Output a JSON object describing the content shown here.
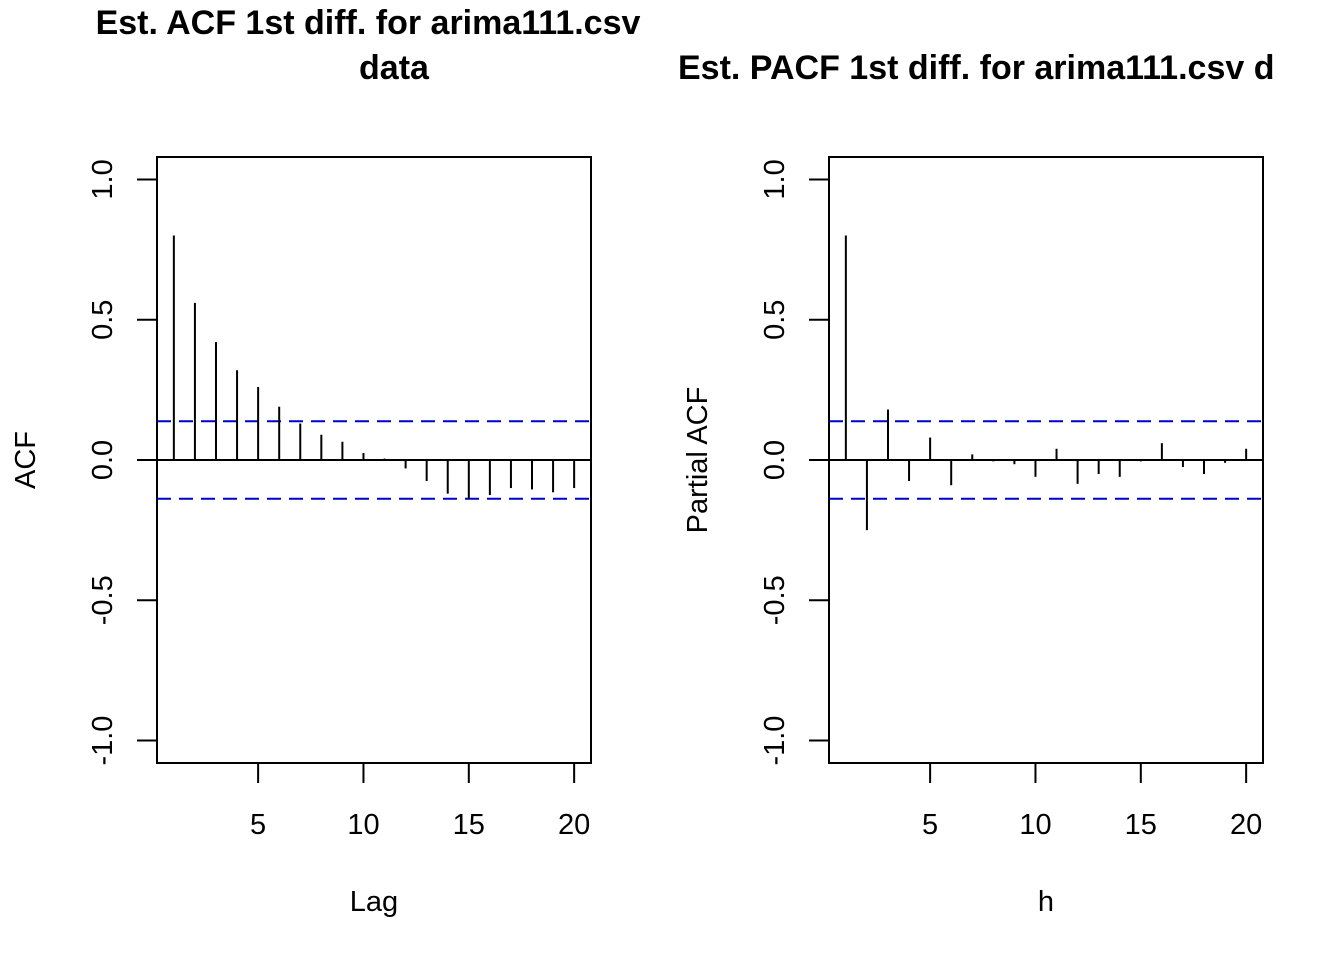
{
  "chart_data": [
    {
      "type": "bar",
      "title_line1": "Est. ACF 1st diff. for arima111.csv",
      "title_line2": "data",
      "xlabel": "Lag",
      "ylabel": "ACF",
      "xlim": [
        0.2,
        20.8
      ],
      "ylim": [
        -1.08,
        1.08
      ],
      "x_ticks": [
        5,
        10,
        15,
        20
      ],
      "x_tick_labels": [
        "5",
        "10",
        "15",
        "20"
      ],
      "y_ticks": [
        -1.0,
        -0.5,
        0.0,
        0.5,
        1.0
      ],
      "y_tick_labels": [
        "-1.0",
        "-0.5",
        "0.0",
        "0.5",
        "1.0"
      ],
      "confidence_bound": 0.138,
      "confidence_color": "#0000cc",
      "lags": [
        1,
        2,
        3,
        4,
        5,
        6,
        7,
        8,
        9,
        10,
        11,
        12,
        13,
        14,
        15,
        16,
        17,
        18,
        19,
        20
      ],
      "values": [
        0.8,
        0.56,
        0.42,
        0.32,
        0.26,
        0.19,
        0.13,
        0.09,
        0.065,
        0.025,
        0.005,
        -0.03,
        -0.075,
        -0.12,
        -0.14,
        -0.125,
        -0.1,
        -0.105,
        -0.115,
        -0.1
      ]
    },
    {
      "type": "bar",
      "title_line1": "Est. PACF 1st diff. for arima111.csv d",
      "title_line2": "",
      "xlabel": "h",
      "ylabel": "Partial ACF",
      "xlim": [
        0.2,
        20.8
      ],
      "ylim": [
        -1.08,
        1.08
      ],
      "x_ticks": [
        5,
        10,
        15,
        20
      ],
      "x_tick_labels": [
        "5",
        "10",
        "15",
        "20"
      ],
      "y_ticks": [
        -1.0,
        -0.5,
        0.0,
        0.5,
        1.0
      ],
      "y_tick_labels": [
        "-1.0",
        "-0.5",
        "0.0",
        "0.5",
        "1.0"
      ],
      "confidence_bound": 0.138,
      "confidence_color": "#0000cc",
      "lags": [
        1,
        2,
        3,
        4,
        5,
        6,
        7,
        8,
        9,
        10,
        11,
        12,
        13,
        14,
        15,
        16,
        17,
        18,
        19,
        20
      ],
      "values": [
        0.8,
        -0.25,
        0.18,
        -0.075,
        0.08,
        -0.09,
        0.02,
        -0.005,
        -0.015,
        -0.06,
        0.04,
        -0.085,
        -0.05,
        -0.06,
        -0.005,
        0.06,
        -0.025,
        -0.05,
        -0.01,
        0.04
      ]
    }
  ]
}
